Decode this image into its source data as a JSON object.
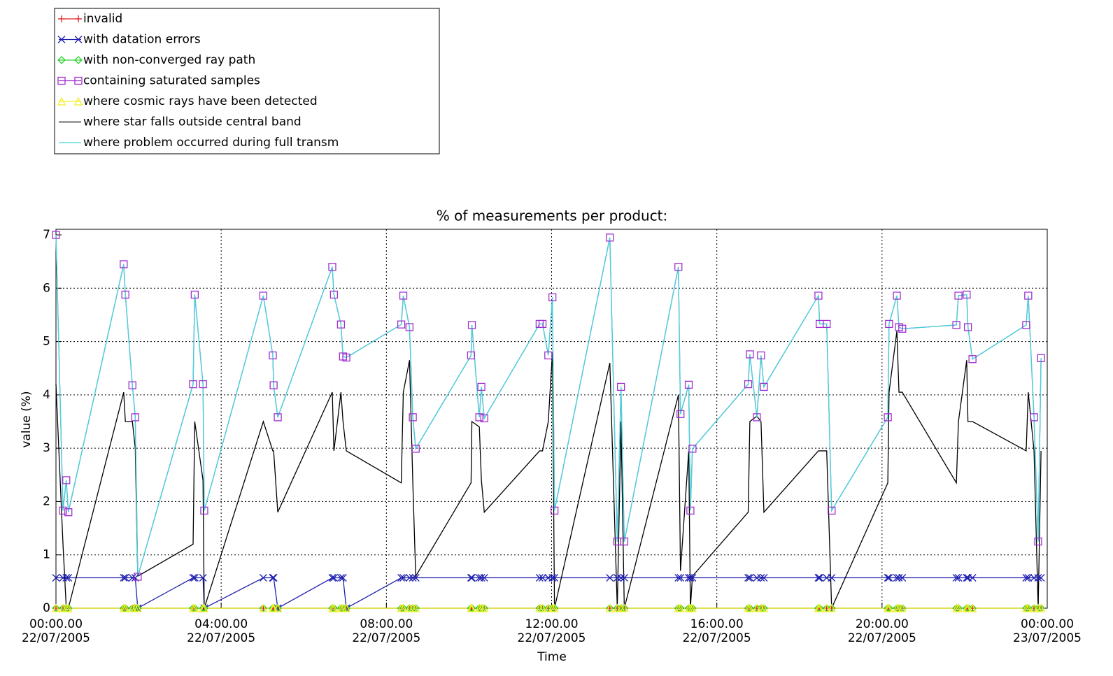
{
  "chart_data": {
    "type": "line",
    "title": "% of measurements per product:",
    "xlabel": "Time",
    "ylabel": "value (%)",
    "legend": "outside-top-left",
    "grid": true,
    "xlim": [
      0,
      24
    ],
    "xticks": [
      {
        "value": 0,
        "label": [
          "00:00.00",
          "22/07/2005"
        ]
      },
      {
        "value": 4,
        "label": [
          "04:00.00",
          "22/07/2005"
        ]
      },
      {
        "value": 8,
        "label": [
          "08:00.00",
          "22/07/2005"
        ]
      },
      {
        "value": 12,
        "label": [
          "12:00.00",
          "22/07/2005"
        ]
      },
      {
        "value": 16,
        "label": [
          "16:00.00",
          "22/07/2005"
        ]
      },
      {
        "value": 20,
        "label": [
          "20:00.00",
          "22/07/2005"
        ]
      },
      {
        "value": 24,
        "label": [
          "00:00.00",
          "23/07/2005"
        ]
      }
    ],
    "ylim": [
      0,
      7
    ],
    "yticks": [
      0,
      1,
      2,
      3,
      4,
      5,
      6,
      7
    ],
    "x": [
      0,
      0.17,
      0.25,
      0.3,
      1.64,
      1.68,
      1.85,
      1.92,
      1.98,
      3.32,
      3.36,
      3.56,
      3.59,
      5.02,
      5.25,
      5.27,
      5.37,
      6.69,
      6.73,
      6.9,
      6.95,
      7.03,
      8.36,
      8.41,
      8.56,
      8.64,
      8.71,
      10.05,
      10.07,
      10.25,
      10.3,
      10.37,
      11.71,
      11.78,
      11.92,
      12.02,
      12.07,
      13.41,
      13.59,
      13.68,
      13.76,
      15.07,
      15.12,
      15.32,
      15.36,
      15.41,
      16.76,
      16.8,
      16.97,
      17.07,
      17.14,
      18.46,
      18.49,
      18.66,
      18.78,
      20.14,
      20.17,
      20.36,
      20.41,
      20.49,
      21.8,
      21.85,
      22.05,
      22.08,
      22.19,
      23.49,
      23.54,
      23.68,
      23.78,
      23.85
    ],
    "series": [
      {
        "name": "invalid",
        "color": "#e02020",
        "marker": "plus",
        "values": [
          0,
          0,
          0,
          0,
          0,
          0,
          0,
          0,
          0,
          0,
          0,
          0,
          0,
          0,
          0,
          0,
          0,
          0,
          0,
          0,
          0,
          0,
          0,
          0,
          0,
          0,
          0,
          0,
          0,
          0,
          0,
          0,
          0,
          0,
          0,
          0,
          0,
          0,
          0,
          0,
          0,
          0,
          0,
          0,
          0,
          0,
          0,
          0,
          0,
          0,
          0,
          0,
          0,
          0,
          0,
          0,
          0,
          0,
          0,
          0,
          0,
          0,
          0,
          0,
          0,
          0,
          0,
          0,
          0,
          0
        ]
      },
      {
        "name": "with datation errors",
        "color": "#2020b0",
        "marker": "cross",
        "values": [
          0.57,
          0.57,
          0.57,
          0.57,
          0.57,
          0.57,
          0.57,
          0.57,
          0,
          0.57,
          0.57,
          0.57,
          0,
          0.57,
          0.57,
          0.57,
          0,
          0.57,
          0.57,
          0.57,
          0.57,
          0,
          0.57,
          0.57,
          0.57,
          0.57,
          0.57,
          0.57,
          0.57,
          0.57,
          0.57,
          0.57,
          0.57,
          0.57,
          0.57,
          0.57,
          0.57,
          0.57,
          0.57,
          0.57,
          0.57,
          0.57,
          0.57,
          0.57,
          0.57,
          0.57,
          0.57,
          0.57,
          0.57,
          0.57,
          0.57,
          0.57,
          0.57,
          0.57,
          0.57,
          0.57,
          0.57,
          0.57,
          0.57,
          0.57,
          0.57,
          0.57,
          0.57,
          0.57,
          0.57,
          0.57,
          0.57,
          0.57,
          0.57,
          0.57
        ]
      },
      {
        "name": "with non-converged ray path",
        "color": "#30d030",
        "marker": "diamond",
        "values": [
          0,
          0,
          0,
          0,
          0,
          0,
          0,
          0,
          0,
          0,
          0,
          0,
          0,
          0,
          0,
          0,
          0,
          0,
          0,
          0,
          0,
          0,
          0,
          0,
          0,
          0,
          0,
          0,
          0,
          0,
          0,
          0,
          0,
          0,
          0,
          0,
          0,
          0,
          0,
          0,
          0,
          0,
          0,
          0,
          0,
          0,
          0,
          0,
          0,
          0,
          0,
          0,
          0,
          0,
          0,
          0,
          0,
          0,
          0,
          0,
          0,
          0,
          0,
          0,
          0,
          0,
          0,
          0,
          0,
          0
        ]
      },
      {
        "name": "containing saturated samples",
        "color": "#a030d0",
        "marker": "square",
        "values": [
          7.0,
          1.83,
          2.4,
          1.8,
          6.45,
          5.88,
          4.18,
          3.58,
          0.59,
          4.2,
          5.88,
          4.2,
          1.83,
          5.86,
          4.74,
          4.18,
          3.58,
          6.4,
          5.88,
          5.32,
          4.72,
          4.7,
          5.32,
          5.86,
          5.27,
          3.58,
          2.99,
          4.74,
          5.31,
          3.58,
          4.15,
          3.56,
          5.33,
          5.33,
          4.74,
          5.83,
          1.83,
          6.95,
          1.25,
          4.15,
          1.25,
          6.4,
          3.64,
          4.19,
          1.83,
          2.99,
          4.2,
          4.76,
          3.58,
          4.74,
          4.15,
          5.86,
          5.33,
          5.33,
          1.83,
          3.58,
          5.33,
          5.86,
          5.27,
          5.24,
          5.31,
          5.86,
          5.88,
          5.27,
          4.67,
          5.31,
          5.86,
          3.58,
          1.25,
          4.69
        ]
      },
      {
        "name": "where cosmic rays have been detected",
        "color": "#f0f020",
        "marker": "triangle",
        "values": [
          0,
          0,
          0,
          0,
          0,
          0,
          0,
          0,
          0,
          0,
          0,
          0,
          0,
          0,
          0,
          0,
          0,
          0,
          0,
          0,
          0,
          0,
          0,
          0,
          0,
          0,
          0,
          0,
          0,
          0,
          0,
          0,
          0,
          0,
          0,
          0,
          0,
          0,
          0,
          0,
          0,
          0,
          0,
          0,
          0,
          0,
          0,
          0,
          0,
          0,
          0,
          0,
          0,
          0,
          0,
          0,
          0,
          0,
          0,
          0,
          0,
          0,
          0,
          0,
          0,
          0,
          0,
          0,
          0,
          0
        ]
      },
      {
        "name": "where star falls outside central band",
        "color": "#000000",
        "marker": "none",
        "values": [
          4.2,
          1.2,
          0,
          0,
          4.05,
          3.5,
          3.5,
          3.0,
          0.6,
          1.2,
          3.5,
          2.4,
          0,
          3.5,
          2.95,
          2.95,
          1.8,
          4.05,
          2.95,
          4.05,
          3.5,
          2.95,
          2.35,
          4.05,
          4.65,
          2.35,
          0.6,
          2.35,
          3.5,
          3.4,
          2.4,
          1.8,
          2.95,
          2.95,
          3.5,
          4.8,
          0,
          4.6,
          0,
          3.5,
          0,
          4.0,
          0.7,
          2.95,
          0,
          0.6,
          1.8,
          3.5,
          3.6,
          3.5,
          1.8,
          2.95,
          2.95,
          2.95,
          0,
          2.35,
          4.05,
          5.2,
          4.05,
          4.05,
          2.35,
          3.5,
          4.65,
          3.5,
          3.5,
          2.95,
          4.05,
          2.95,
          0,
          2.95
        ]
      },
      {
        "name": "where problem occurred during full transm",
        "color": "#40d8d8",
        "marker": "none",
        "values": [
          7.0,
          1.83,
          2.4,
          1.8,
          6.45,
          5.88,
          4.18,
          3.58,
          0.59,
          4.2,
          5.88,
          4.2,
          1.83,
          5.86,
          4.74,
          4.18,
          3.58,
          6.4,
          5.88,
          5.32,
          4.72,
          4.7,
          5.32,
          5.86,
          5.27,
          3.58,
          2.99,
          4.74,
          5.31,
          3.58,
          4.15,
          3.56,
          5.33,
          5.33,
          4.74,
          5.83,
          1.83,
          6.95,
          1.25,
          4.15,
          1.25,
          6.4,
          3.64,
          4.19,
          1.83,
          2.99,
          4.2,
          4.76,
          3.58,
          4.74,
          4.15,
          5.86,
          5.33,
          5.33,
          1.83,
          3.58,
          5.33,
          5.86,
          5.27,
          5.24,
          5.31,
          5.86,
          5.88,
          5.27,
          4.67,
          5.31,
          5.86,
          3.58,
          1.25,
          4.69
        ]
      }
    ]
  }
}
